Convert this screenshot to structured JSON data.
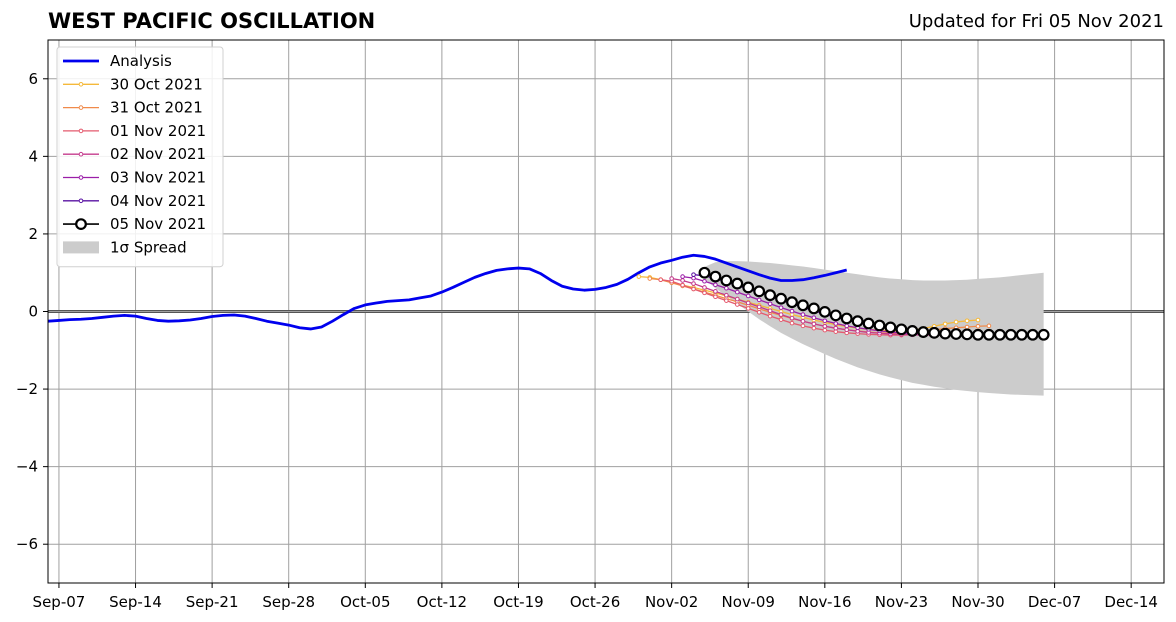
{
  "header": {
    "title": "WEST PACIFIC OSCILLATION",
    "updated": "Updated for Fri 05 Nov 2021"
  },
  "chart_data": {
    "type": "line",
    "title": "WEST PACIFIC OSCILLATION",
    "xlabel": "",
    "ylabel": "",
    "xlim": [
      "2021-09-06",
      "2021-12-17"
    ],
    "ylim": [
      -7,
      7
    ],
    "grid": true,
    "legend_position": "top-left",
    "x_ticks": [
      "2021-09-07",
      "2021-09-14",
      "2021-09-21",
      "2021-09-28",
      "2021-10-05",
      "2021-10-12",
      "2021-10-19",
      "2021-10-26",
      "2021-11-02",
      "2021-11-09",
      "2021-11-16",
      "2021-11-23",
      "2021-11-30",
      "2021-12-07",
      "2021-12-14"
    ],
    "x_tick_labels": [
      "Sep-07",
      "Sep-14",
      "Sep-21",
      "Sep-28",
      "Oct-05",
      "Oct-12",
      "Oct-19",
      "Oct-26",
      "Nov-02",
      "Nov-09",
      "Nov-16",
      "Nov-23",
      "Nov-30",
      "Dec-07",
      "Dec-14"
    ],
    "y_ticks": [
      -6,
      -4,
      -2,
      0,
      2,
      4,
      6
    ],
    "y_tick_labels": [
      "−6",
      "−4",
      "−2",
      "0",
      "2",
      "4",
      "6"
    ],
    "series": [
      {
        "name": "Analysis",
        "color": "#0000ee",
        "style": "analysis",
        "start": "2021-09-06",
        "values": [
          -0.25,
          -0.23,
          -0.21,
          -0.2,
          -0.18,
          -0.15,
          -0.12,
          -0.1,
          -0.12,
          -0.18,
          -0.23,
          -0.25,
          -0.24,
          -0.22,
          -0.18,
          -0.13,
          -0.1,
          -0.09,
          -0.12,
          -0.18,
          -0.25,
          -0.3,
          -0.35,
          -0.42,
          -0.45,
          -0.4,
          -0.25,
          -0.08,
          0.08,
          0.17,
          0.22,
          0.26,
          0.28,
          0.3,
          0.35,
          0.4,
          0.5,
          0.62,
          0.75,
          0.88,
          0.98,
          1.06,
          1.1,
          1.12,
          1.1,
          0.98,
          0.8,
          0.65,
          0.58,
          0.55,
          0.57,
          0.62,
          0.7,
          0.83,
          1.0,
          1.15,
          1.25,
          1.32,
          1.4,
          1.45,
          1.42,
          1.35,
          1.25,
          1.15,
          1.05,
          0.95,
          0.86,
          0.8,
          0.8,
          0.82,
          0.87,
          0.93,
          1.0,
          1.07
        ]
      },
      {
        "name": "30 Oct 2021",
        "color": "#f5b93a",
        "style": "forecast",
        "start": "2021-10-30",
        "values": [
          0.9,
          0.88,
          0.82,
          0.75,
          0.68,
          0.62,
          0.55,
          0.48,
          0.4,
          0.32,
          0.24,
          0.16,
          0.08,
          0.0,
          -0.08,
          -0.15,
          -0.22,
          -0.28,
          -0.34,
          -0.39,
          -0.43,
          -0.46,
          -0.48,
          -0.5,
          -0.5,
          -0.48,
          -0.44,
          -0.38,
          -0.32,
          -0.27,
          -0.24,
          -0.22
        ]
      },
      {
        "name": "31 Oct 2021",
        "color": "#f08a4b",
        "style": "forecast",
        "start": "2021-10-31",
        "values": [
          0.85,
          0.82,
          0.74,
          0.66,
          0.58,
          0.5,
          0.42,
          0.33,
          0.25,
          0.16,
          0.07,
          -0.02,
          -0.1,
          -0.18,
          -0.25,
          -0.32,
          -0.38,
          -0.43,
          -0.47,
          -0.5,
          -0.53,
          -0.55,
          -0.56,
          -0.55,
          -0.53,
          -0.5,
          -0.47,
          -0.44,
          -0.42,
          -0.4,
          -0.38,
          -0.37
        ]
      },
      {
        "name": "01 Nov 2021",
        "color": "#e45a6e",
        "style": "forecast",
        "start": "2021-11-01",
        "values": [
          0.82,
          0.78,
          0.68,
          0.58,
          0.48,
          0.38,
          0.28,
          0.18,
          0.08,
          -0.02,
          -0.12,
          -0.21,
          -0.3,
          -0.37,
          -0.43,
          -0.48,
          -0.52,
          -0.55,
          -0.57,
          -0.59,
          -0.6,
          -0.61,
          -0.61,
          -0.6,
          -0.6,
          -0.59,
          -0.59,
          -0.58,
          -0.58,
          -0.57,
          -0.57,
          -0.56
        ]
      },
      {
        "name": "02 Nov 2021",
        "color": "#c43b8d",
        "style": "forecast",
        "start": "2021-11-02",
        "values": [
          0.85,
          0.8,
          0.72,
          0.62,
          0.52,
          0.42,
          0.32,
          0.22,
          0.12,
          0.02,
          -0.08,
          -0.17,
          -0.25,
          -0.32,
          -0.38,
          -0.43,
          -0.47,
          -0.51,
          -0.54,
          -0.56,
          -0.58,
          -0.59,
          -0.6,
          -0.61,
          -0.61,
          -0.61,
          -0.6,
          -0.6,
          -0.6,
          -0.59,
          -0.59,
          -0.59
        ]
      },
      {
        "name": "03 Nov 2021",
        "color": "#9b1ea8",
        "style": "forecast",
        "start": "2021-11-03",
        "values": [
          0.9,
          0.86,
          0.78,
          0.69,
          0.6,
          0.5,
          0.4,
          0.3,
          0.2,
          0.1,
          0.01,
          -0.08,
          -0.16,
          -0.24,
          -0.31,
          -0.37,
          -0.42,
          -0.46,
          -0.5,
          -0.53,
          -0.55,
          -0.57,
          -0.58,
          -0.59,
          -0.6,
          -0.6,
          -0.6,
          -0.6,
          -0.6,
          -0.6,
          -0.6,
          -0.6
        ]
      },
      {
        "name": "04 Nov 2021",
        "color": "#5a13a3",
        "style": "forecast",
        "start": "2021-11-04",
        "values": [
          0.95,
          0.92,
          0.85,
          0.76,
          0.67,
          0.58,
          0.49,
          0.39,
          0.29,
          0.2,
          0.11,
          0.02,
          -0.07,
          -0.15,
          -0.22,
          -0.29,
          -0.35,
          -0.4,
          -0.45,
          -0.49,
          -0.52,
          -0.55,
          -0.57,
          -0.58,
          -0.59,
          -0.6,
          -0.6,
          -0.6,
          -0.6,
          -0.6,
          -0.6,
          -0.6
        ]
      },
      {
        "name": "05 Nov 2021",
        "color": "#000000",
        "style": "current",
        "start": "2021-11-05",
        "values": [
          1.0,
          0.9,
          0.8,
          0.72,
          0.62,
          0.52,
          0.42,
          0.33,
          0.24,
          0.16,
          0.08,
          -0.01,
          -0.1,
          -0.18,
          -0.25,
          -0.31,
          -0.36,
          -0.41,
          -0.46,
          -0.5,
          -0.53,
          -0.55,
          -0.57,
          -0.58,
          -0.59,
          -0.6,
          -0.6,
          -0.6,
          -0.6,
          -0.6,
          -0.6,
          -0.6
        ]
      }
    ],
    "spread": {
      "name": "1σ Spread",
      "color": "#cccccc",
      "start": "2021-11-05",
      "upper": [
        1.15,
        1.27,
        1.3,
        1.3,
        1.29,
        1.27,
        1.25,
        1.22,
        1.19,
        1.16,
        1.12,
        1.08,
        1.04,
        1.0,
        0.96,
        0.92,
        0.88,
        0.85,
        0.83,
        0.81,
        0.8,
        0.8,
        0.8,
        0.81,
        0.82,
        0.84,
        0.86,
        0.88,
        0.91,
        0.94,
        0.97,
        1.0
      ],
      "lower": [
        0.85,
        0.6,
        0.4,
        0.2,
        0.0,
        -0.2,
        -0.38,
        -0.55,
        -0.7,
        -0.84,
        -0.97,
        -1.1,
        -1.22,
        -1.33,
        -1.44,
        -1.53,
        -1.62,
        -1.7,
        -1.77,
        -1.84,
        -1.89,
        -1.94,
        -1.98,
        -2.02,
        -2.05,
        -2.08,
        -2.1,
        -2.12,
        -2.14,
        -2.15,
        -2.16,
        -2.17
      ]
    }
  }
}
